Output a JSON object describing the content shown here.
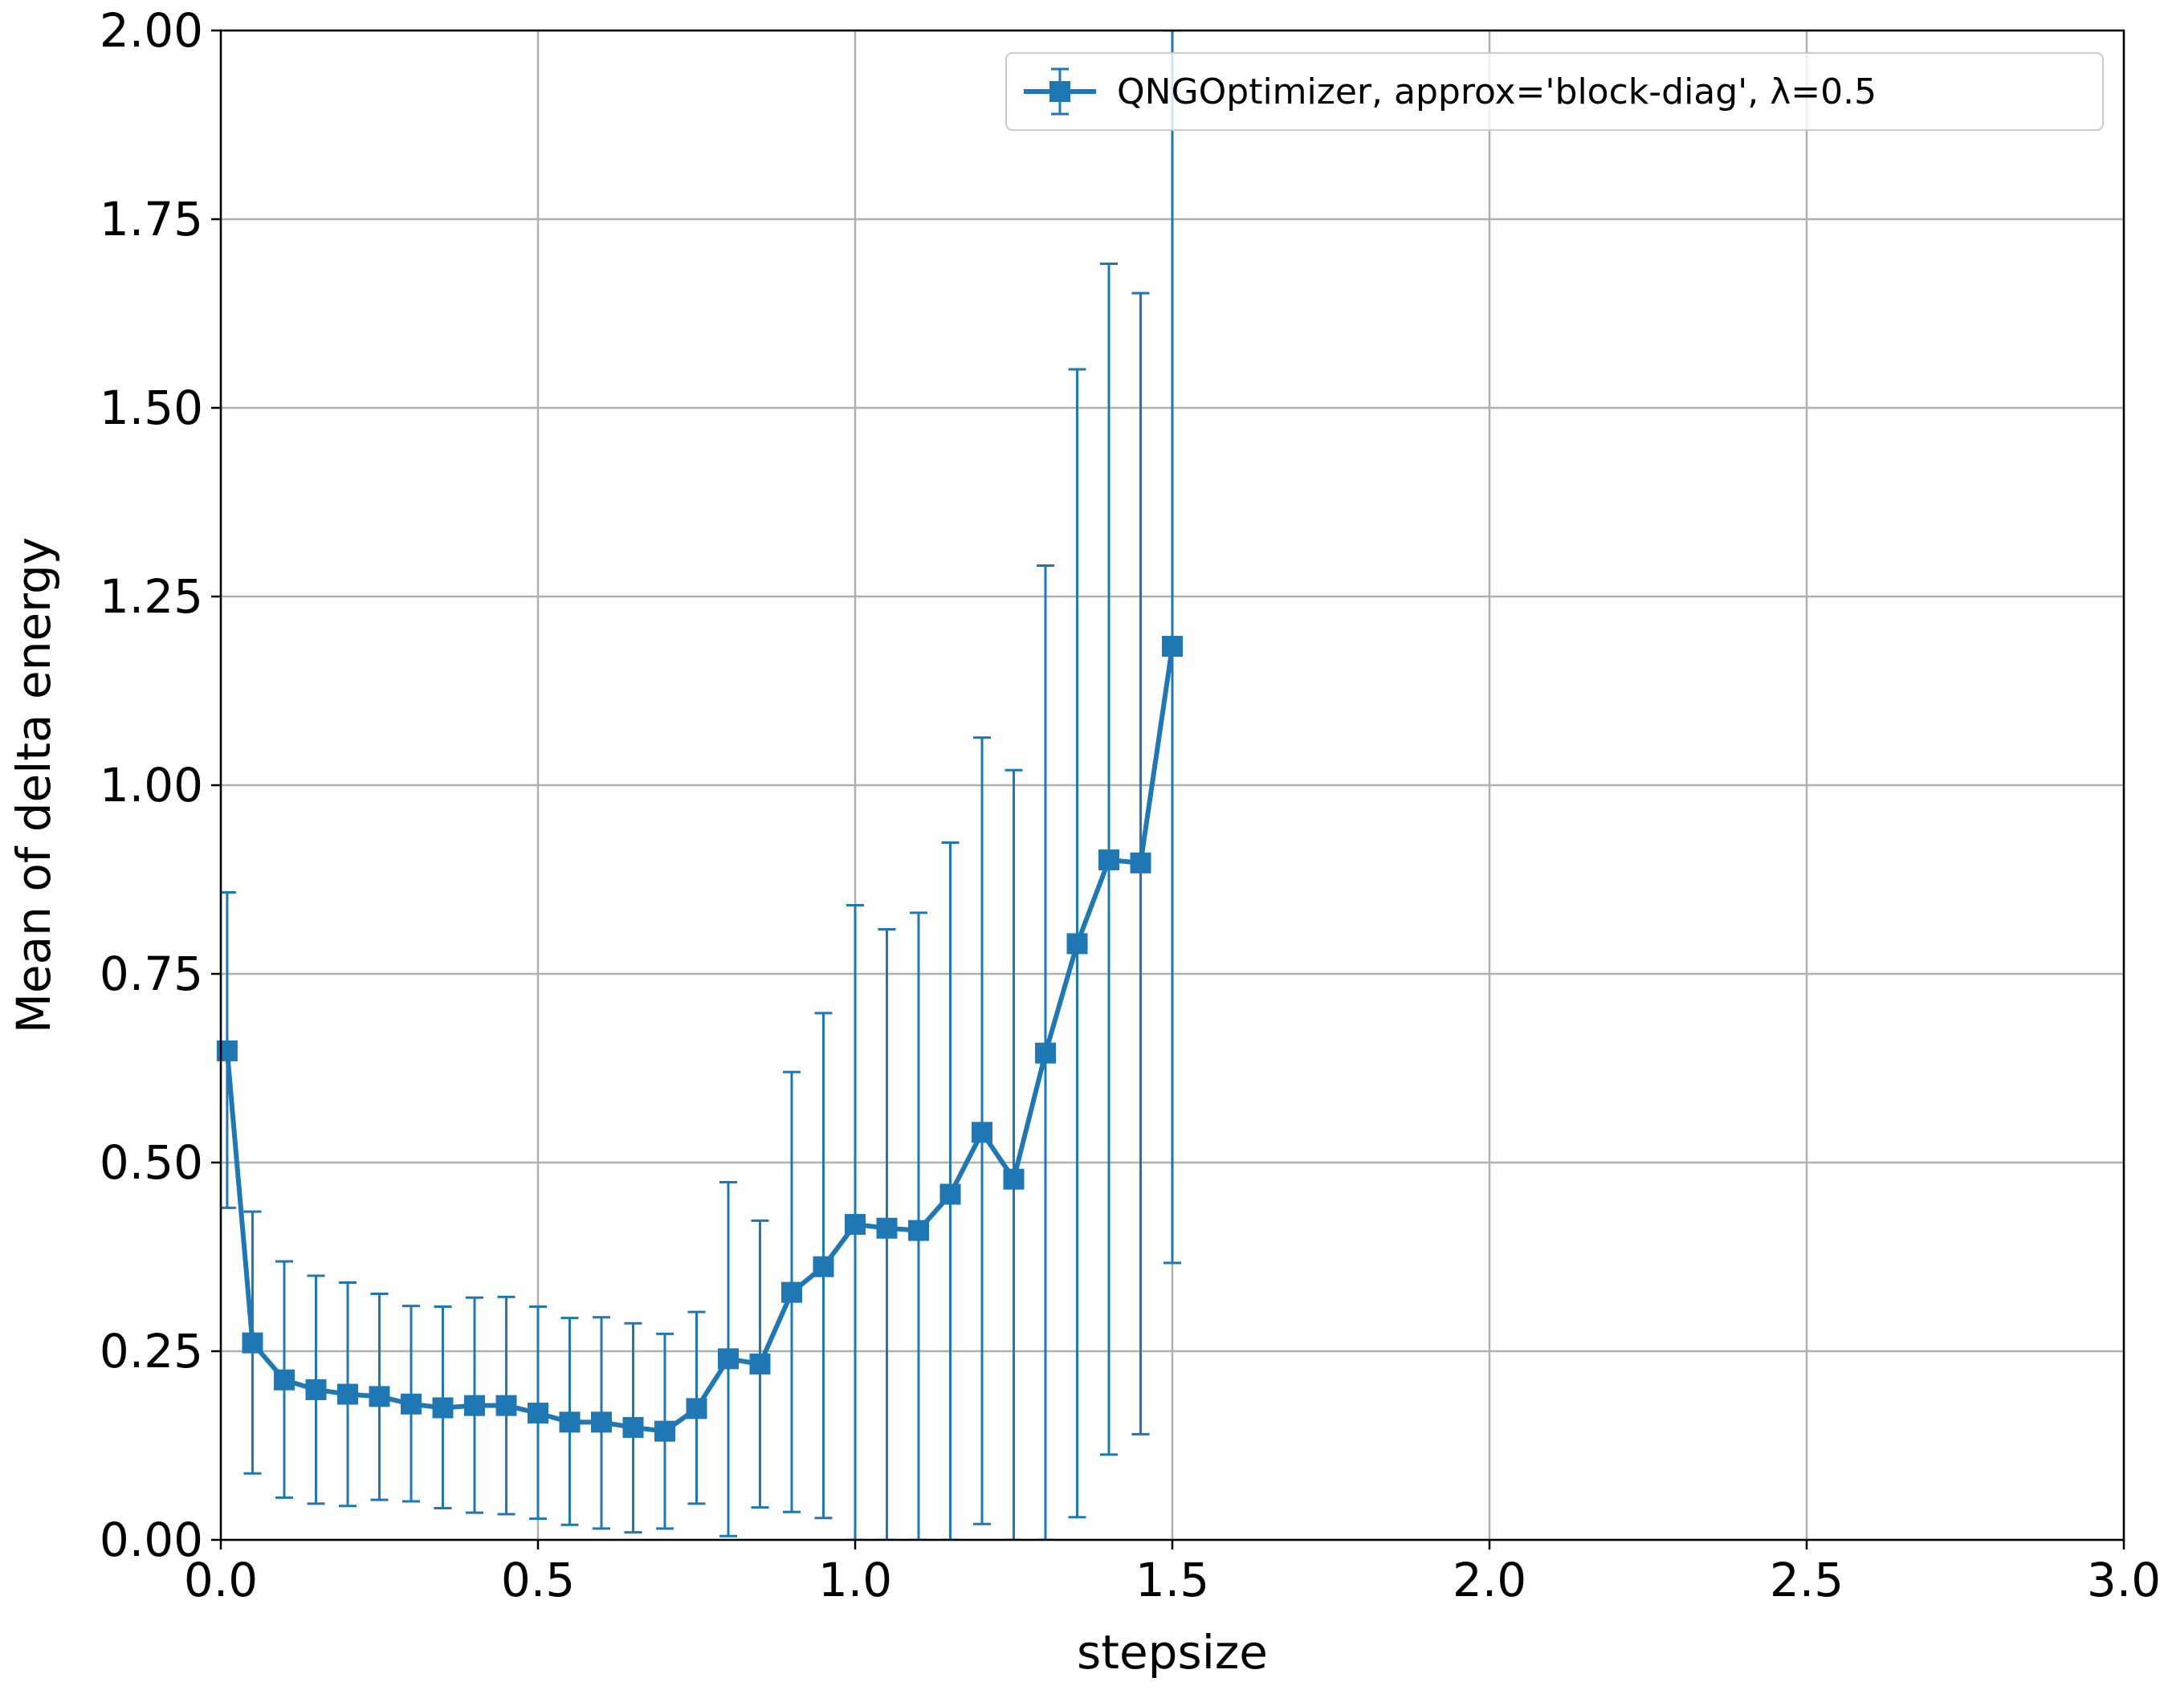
{
  "chart_data": {
    "type": "line",
    "title": "",
    "xlabel": "stepsize",
    "ylabel": "Mean of delta energy",
    "xlim": [
      0.0,
      3.0
    ],
    "ylim": [
      0.0,
      2.0
    ],
    "xticks": [
      0.0,
      0.5,
      1.0,
      1.5,
      2.0,
      2.5,
      3.0
    ],
    "yticks": [
      0.0,
      0.25,
      0.5,
      0.75,
      1.0,
      1.25,
      1.5,
      1.75,
      2.0
    ],
    "grid": true,
    "legend_position": "top-right",
    "color": "#1f77b4",
    "series": [
      {
        "name": "QNGOptimizer, approx='block-diag', λ=0.5",
        "marker": "square",
        "x": [
          0.01,
          0.05,
          0.1,
          0.15,
          0.2,
          0.25,
          0.3,
          0.35,
          0.4,
          0.45,
          0.5,
          0.55,
          0.6,
          0.65,
          0.7,
          0.75,
          0.8,
          0.85,
          0.9,
          0.95,
          1.0,
          1.05,
          1.1,
          1.15,
          1.2,
          1.25,
          1.3,
          1.35,
          1.4,
          1.45,
          1.5
        ],
        "y": [
          0.648,
          0.261,
          0.212,
          0.199,
          0.193,
          0.19,
          0.18,
          0.175,
          0.178,
          0.178,
          0.168,
          0.156,
          0.156,
          0.149,
          0.144,
          0.174,
          0.24,
          0.233,
          0.328,
          0.362,
          0.418,
          0.413,
          0.41,
          0.458,
          0.54,
          0.478,
          0.645,
          0.79,
          0.901,
          0.897,
          1.184
        ],
        "err_low": [
          0.44,
          0.088,
          0.056,
          0.048,
          0.045,
          0.053,
          0.051,
          0.042,
          0.036,
          0.034,
          0.028,
          0.02,
          0.015,
          0.01,
          0.015,
          0.048,
          0.005,
          0.043,
          0.037,
          0.029,
          0.0,
          0.0,
          0.0,
          0.0,
          0.021,
          0.0,
          0.0,
          0.03,
          0.113,
          0.14,
          0.367
        ],
        "err_high": [
          0.858,
          0.435,
          0.369,
          0.35,
          0.341,
          0.326,
          0.31,
          0.309,
          0.321,
          0.322,
          0.309,
          0.294,
          0.295,
          0.287,
          0.273,
          0.302,
          0.474,
          0.423,
          0.62,
          0.698,
          0.841,
          0.809,
          0.831,
          0.924,
          1.063,
          1.02,
          1.291,
          1.551,
          1.691,
          1.652,
          2.0
        ]
      }
    ]
  }
}
